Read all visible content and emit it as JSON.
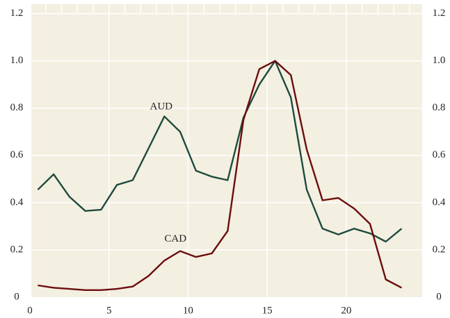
{
  "chart_data": {
    "type": "line",
    "x": [
      0.5,
      1.5,
      2.5,
      3.5,
      4.5,
      5.5,
      6.5,
      7.5,
      8.5,
      9.5,
      10.5,
      11.5,
      12.5,
      13.5,
      14.5,
      15.5,
      16.5,
      17.5,
      18.5,
      19.5,
      20.5,
      21.5,
      22.5,
      23.5
    ],
    "series": [
      {
        "name": "AUD",
        "color": "#1e4a3e",
        "values": [
          0.455,
          0.52,
          0.425,
          0.365,
          0.37,
          0.475,
          0.495,
          0.63,
          0.765,
          0.7,
          0.535,
          0.51,
          0.495,
          0.76,
          0.9,
          1.0,
          0.845,
          0.455,
          0.29,
          0.265,
          0.29,
          0.27,
          0.235,
          0.29
        ]
      },
      {
        "name": "CAD",
        "color": "#6b0d0d",
        "values": [
          0.05,
          0.04,
          0.035,
          0.03,
          0.03,
          0.035,
          0.045,
          0.09,
          0.155,
          0.195,
          0.17,
          0.185,
          0.28,
          0.75,
          0.965,
          1.0,
          0.94,
          0.625,
          0.41,
          0.42,
          0.375,
          0.31,
          0.075,
          0.04
        ]
      }
    ],
    "xlim": [
      0,
      24.8
    ],
    "xticks": [
      0,
      5,
      10,
      15,
      20
    ],
    "xminorticks": [
      1,
      2,
      3,
      4,
      6,
      7,
      8,
      9,
      11,
      12,
      13,
      14,
      16,
      17,
      18,
      19,
      21,
      22,
      23,
      24
    ],
    "ylim": [
      0,
      1.24
    ],
    "yticks": [
      0,
      0.2,
      0.4,
      0.6,
      0.8,
      {
        "value": 1.0,
        "label": "1.0"
      },
      1.2
    ],
    "y2lim": [
      0,
      1.24
    ],
    "y2ticks": [
      0,
      0.2,
      0.4,
      0.6,
      0.8,
      {
        "value": 1.0,
        "label": "1.0"
      },
      1.2
    ],
    "grid": true
  }
}
